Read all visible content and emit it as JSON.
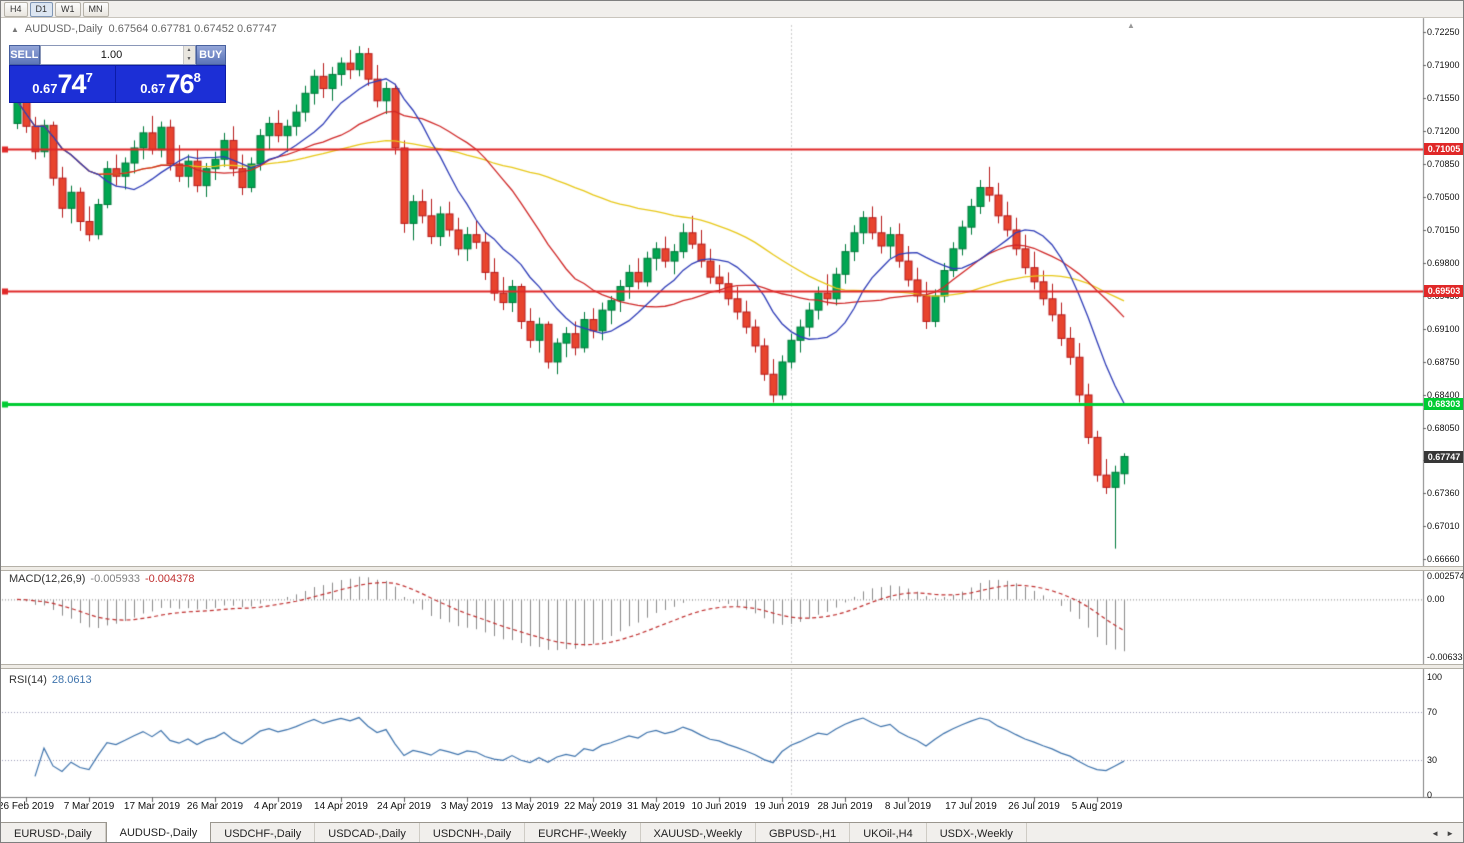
{
  "toolbar": {
    "timeframes": [
      "H4",
      "D1",
      "W1",
      "MN"
    ],
    "active": "D1"
  },
  "chart_header": {
    "symbol_label": "AUDUSD-,Daily",
    "ohlc": "0.67564 0.67781 0.67452 0.67747"
  },
  "trade_panel": {
    "sell_label": "SELL",
    "buy_label": "BUY",
    "volume": "1.00",
    "spin_up": "▲",
    "spin_down": "▼",
    "sell_price": {
      "prefix": "0.67",
      "big": "74",
      "sup": "7"
    },
    "buy_price": {
      "prefix": "0.67",
      "big": "76",
      "sup": "8"
    }
  },
  "price_axis": {
    "ticks": [
      "0.72250",
      "0.71900",
      "0.71550",
      "0.71200",
      "0.70850",
      "0.70500",
      "0.70150",
      "0.69800",
      "0.69450",
      "0.69100",
      "0.68750",
      "0.68400",
      "0.68050",
      "0.67710",
      "0.67360",
      "0.67010",
      "0.66660"
    ],
    "current_price": "0.67747",
    "current_tag_color": "#373737"
  },
  "time_axis": {
    "labels": [
      {
        "text": "26 Feb 2019",
        "i": 1
      },
      {
        "text": "7 Mar 2019",
        "i": 8
      },
      {
        "text": "17 Mar 2019",
        "i": 15
      },
      {
        "text": "26 Mar 2019",
        "i": 22
      },
      {
        "text": "4 Apr 2019",
        "i": 29
      },
      {
        "text": "14 Apr 2019",
        "i": 36
      },
      {
        "text": "24 Apr 2019",
        "i": 43
      },
      {
        "text": "3 May 2019",
        "i": 50
      },
      {
        "text": "13 May 2019",
        "i": 57
      },
      {
        "text": "22 May 2019",
        "i": 64
      },
      {
        "text": "31 May 2019",
        "i": 71
      },
      {
        "text": "10 Jun 2019",
        "i": 78
      },
      {
        "text": "19 Jun 2019",
        "i": 85
      },
      {
        "text": "28 Jun 2019",
        "i": 92
      },
      {
        "text": "8 Jul 2019",
        "i": 99
      },
      {
        "text": "17 Jul 2019",
        "i": 106
      },
      {
        "text": "26 Jul 2019",
        "i": 113
      },
      {
        "text": "5 Aug 2019",
        "i": 120
      }
    ]
  },
  "macd_panel": {
    "name": "MACD(12,26,9)",
    "main_value": "-0.005933",
    "signal_value": "-0.004378",
    "axis": [
      "0.002574",
      "0.00",
      "-0.006338"
    ],
    "histogram_color": "#8c8c8c",
    "signal_color": "#c03030"
  },
  "rsi_panel": {
    "name": "RSI(14)",
    "value": "28.0613",
    "axis": [
      "100",
      "70",
      "30",
      "0"
    ],
    "levels": [
      70,
      30
    ],
    "line_color": "#3f74ad"
  },
  "tabs": [
    {
      "label": "EURUSD-,Daily",
      "active": false
    },
    {
      "label": "AUDUSD-,Daily",
      "active": true
    },
    {
      "label": "USDCHF-,Daily",
      "active": false
    },
    {
      "label": "USDCAD-,Daily",
      "active": false
    },
    {
      "label": "USDCNH-,Daily",
      "active": false
    },
    {
      "label": "EURCHF-,Weekly",
      "active": false
    },
    {
      "label": "XAUUSD-,Weekly",
      "active": false
    },
    {
      "label": "GBPUSD-,H1",
      "active": false
    },
    {
      "label": "UKOil-,H4",
      "active": false
    },
    {
      "label": "USDX-,Weekly",
      "active": false
    }
  ],
  "tab_arrows": {
    "left": "◄",
    "right": "►"
  },
  "chart_data": {
    "type": "candlestick",
    "symbol": "AUDUSD-",
    "timeframe": "Daily",
    "current_bar": {
      "open": 0.67564,
      "high": 0.67781,
      "low": 0.67452,
      "close": 0.67747
    },
    "y_range": [
      0.6666,
      0.7225
    ],
    "up_color": "#00a651",
    "up_border": "#007a3b",
    "down_color": "#e8442e",
    "down_border": "#b71c1c",
    "moving_averages": [
      {
        "period": 50,
        "color": "#e8c818"
      },
      {
        "period": 20,
        "color": "#d02828"
      },
      {
        "period": 10,
        "color": "#2f3db8"
      }
    ],
    "hlines": [
      {
        "price": 0.71005,
        "label": "0.71005",
        "color": "#e02828",
        "width": 2
      },
      {
        "price": 0.69503,
        "label": "0.69503",
        "color": "#e02828",
        "width": 2
      },
      {
        "price": 0.68303,
        "label": "0.68303",
        "color": "#00cc33",
        "width": 3
      }
    ],
    "vline_index": 86,
    "candles": [
      [
        0.7128,
        0.716,
        0.7122,
        0.7152
      ],
      [
        0.7152,
        0.7158,
        0.7118,
        0.7125
      ],
      [
        0.7125,
        0.7135,
        0.709,
        0.7098
      ],
      [
        0.7098,
        0.7132,
        0.7092,
        0.7126
      ],
      [
        0.7126,
        0.713,
        0.7062,
        0.707
      ],
      [
        0.707,
        0.7082,
        0.7028,
        0.7038
      ],
      [
        0.7038,
        0.7062,
        0.7022,
        0.7055
      ],
      [
        0.7055,
        0.706,
        0.7014,
        0.7024
      ],
      [
        0.7024,
        0.704,
        0.7003,
        0.701
      ],
      [
        0.701,
        0.7048,
        0.7005,
        0.7042
      ],
      [
        0.7042,
        0.7088,
        0.7038,
        0.708
      ],
      [
        0.708,
        0.7095,
        0.7062,
        0.7072
      ],
      [
        0.7072,
        0.7092,
        0.7058,
        0.7086
      ],
      [
        0.7086,
        0.711,
        0.7075,
        0.7102
      ],
      [
        0.7102,
        0.7125,
        0.709,
        0.7118
      ],
      [
        0.7118,
        0.7136,
        0.7095,
        0.71
      ],
      [
        0.71,
        0.713,
        0.7092,
        0.7124
      ],
      [
        0.7124,
        0.7132,
        0.7078,
        0.7085
      ],
      [
        0.7085,
        0.7105,
        0.7066,
        0.7072
      ],
      [
        0.7072,
        0.7095,
        0.706,
        0.7088
      ],
      [
        0.7088,
        0.71,
        0.7055,
        0.7062
      ],
      [
        0.7062,
        0.7086,
        0.705,
        0.708
      ],
      [
        0.708,
        0.7098,
        0.7068,
        0.709
      ],
      [
        0.709,
        0.7118,
        0.7082,
        0.711
      ],
      [
        0.711,
        0.7125,
        0.7072,
        0.708
      ],
      [
        0.708,
        0.7095,
        0.7052,
        0.706
      ],
      [
        0.706,
        0.7092,
        0.7055,
        0.7085
      ],
      [
        0.7085,
        0.7122,
        0.7078,
        0.7115
      ],
      [
        0.7115,
        0.7135,
        0.71,
        0.7128
      ],
      [
        0.7128,
        0.7142,
        0.7108,
        0.7115
      ],
      [
        0.7115,
        0.7132,
        0.7098,
        0.7125
      ],
      [
        0.7125,
        0.7148,
        0.7115,
        0.714
      ],
      [
        0.714,
        0.7168,
        0.713,
        0.716
      ],
      [
        0.716,
        0.7185,
        0.7148,
        0.7178
      ],
      [
        0.7178,
        0.7192,
        0.7155,
        0.7165
      ],
      [
        0.7165,
        0.7188,
        0.7152,
        0.718
      ],
      [
        0.718,
        0.7198,
        0.7168,
        0.7192
      ],
      [
        0.7192,
        0.7206,
        0.7175,
        0.7185
      ],
      [
        0.7185,
        0.721,
        0.7178,
        0.7202
      ],
      [
        0.7202,
        0.7208,
        0.7168,
        0.7175
      ],
      [
        0.7175,
        0.719,
        0.7145,
        0.7152
      ],
      [
        0.7152,
        0.7172,
        0.7138,
        0.7165
      ],
      [
        0.7165,
        0.717,
        0.7095,
        0.7102
      ],
      [
        0.7102,
        0.711,
        0.7012,
        0.7022
      ],
      [
        0.7022,
        0.7052,
        0.7004,
        0.7045
      ],
      [
        0.7045,
        0.7058,
        0.7022,
        0.703
      ],
      [
        0.703,
        0.7048,
        0.7,
        0.7008
      ],
      [
        0.7008,
        0.704,
        0.6998,
        0.7032
      ],
      [
        0.7032,
        0.7045,
        0.7008,
        0.7015
      ],
      [
        0.7015,
        0.7028,
        0.6988,
        0.6995
      ],
      [
        0.6995,
        0.7018,
        0.6982,
        0.701
      ],
      [
        0.701,
        0.7025,
        0.6995,
        0.7002
      ],
      [
        0.7002,
        0.7012,
        0.6962,
        0.697
      ],
      [
        0.697,
        0.6985,
        0.694,
        0.6948
      ],
      [
        0.6948,
        0.6965,
        0.693,
        0.6938
      ],
      [
        0.6938,
        0.6962,
        0.6928,
        0.6955
      ],
      [
        0.6955,
        0.6958,
        0.691,
        0.6918
      ],
      [
        0.6918,
        0.6932,
        0.689,
        0.6898
      ],
      [
        0.6898,
        0.6922,
        0.6885,
        0.6915
      ],
      [
        0.6915,
        0.6918,
        0.6868,
        0.6875
      ],
      [
        0.6875,
        0.69,
        0.6862,
        0.6895
      ],
      [
        0.6895,
        0.6912,
        0.688,
        0.6905
      ],
      [
        0.6905,
        0.6918,
        0.6882,
        0.689
      ],
      [
        0.689,
        0.6928,
        0.6885,
        0.692
      ],
      [
        0.692,
        0.6932,
        0.69,
        0.6908
      ],
      [
        0.6908,
        0.6938,
        0.6898,
        0.693
      ],
      [
        0.693,
        0.6945,
        0.6915,
        0.694
      ],
      [
        0.694,
        0.6962,
        0.6928,
        0.6955
      ],
      [
        0.6955,
        0.6978,
        0.6942,
        0.697
      ],
      [
        0.697,
        0.6985,
        0.6952,
        0.696
      ],
      [
        0.696,
        0.6992,
        0.6955,
        0.6985
      ],
      [
        0.6985,
        0.7002,
        0.6972,
        0.6995
      ],
      [
        0.6995,
        0.7008,
        0.6975,
        0.6982
      ],
      [
        0.6982,
        0.7,
        0.6968,
        0.6992
      ],
      [
        0.6992,
        0.7022,
        0.6985,
        0.7012
      ],
      [
        0.7012,
        0.703,
        0.6995,
        0.7
      ],
      [
        0.7,
        0.7015,
        0.6975,
        0.6982
      ],
      [
        0.6982,
        0.6995,
        0.6958,
        0.6965
      ],
      [
        0.6965,
        0.6978,
        0.6948,
        0.6958
      ],
      [
        0.6958,
        0.697,
        0.6935,
        0.6942
      ],
      [
        0.6942,
        0.6955,
        0.692,
        0.6928
      ],
      [
        0.6928,
        0.694,
        0.6905,
        0.6912
      ],
      [
        0.6912,
        0.692,
        0.6885,
        0.6892
      ],
      [
        0.6892,
        0.69,
        0.6855,
        0.6862
      ],
      [
        0.6862,
        0.6878,
        0.6832,
        0.684
      ],
      [
        0.684,
        0.6882,
        0.6835,
        0.6875
      ],
      [
        0.6875,
        0.6905,
        0.6868,
        0.6898
      ],
      [
        0.6898,
        0.692,
        0.6885,
        0.6912
      ],
      [
        0.6912,
        0.6938,
        0.6902,
        0.693
      ],
      [
        0.693,
        0.6955,
        0.692,
        0.6948
      ],
      [
        0.6948,
        0.6968,
        0.6935,
        0.6942
      ],
      [
        0.6942,
        0.6975,
        0.6935,
        0.6968
      ],
      [
        0.6968,
        0.7,
        0.6958,
        0.6992
      ],
      [
        0.6992,
        0.702,
        0.6982,
        0.7012
      ],
      [
        0.7012,
        0.7035,
        0.7,
        0.7028
      ],
      [
        0.7028,
        0.704,
        0.7005,
        0.7012
      ],
      [
        0.7012,
        0.703,
        0.699,
        0.6998
      ],
      [
        0.6998,
        0.7018,
        0.6985,
        0.701
      ],
      [
        0.701,
        0.7022,
        0.6975,
        0.6982
      ],
      [
        0.6982,
        0.6998,
        0.6955,
        0.6962
      ],
      [
        0.6962,
        0.6975,
        0.6938,
        0.6945
      ],
      [
        0.6945,
        0.696,
        0.691,
        0.6918
      ],
      [
        0.6918,
        0.6952,
        0.6912,
        0.6945
      ],
      [
        0.6945,
        0.698,
        0.6938,
        0.6972
      ],
      [
        0.6972,
        0.7002,
        0.6965,
        0.6995
      ],
      [
        0.6995,
        0.7025,
        0.6988,
        0.7018
      ],
      [
        0.7018,
        0.7048,
        0.701,
        0.704
      ],
      [
        0.704,
        0.7068,
        0.7032,
        0.706
      ],
      [
        0.706,
        0.7082,
        0.7045,
        0.7052
      ],
      [
        0.7052,
        0.7065,
        0.7022,
        0.703
      ],
      [
        0.703,
        0.7045,
        0.7008,
        0.7015
      ],
      [
        0.7015,
        0.7028,
        0.6988,
        0.6995
      ],
      [
        0.6995,
        0.701,
        0.6968,
        0.6975
      ],
      [
        0.6975,
        0.6992,
        0.6952,
        0.696
      ],
      [
        0.696,
        0.6972,
        0.6935,
        0.6942
      ],
      [
        0.6942,
        0.6958,
        0.6918,
        0.6925
      ],
      [
        0.6925,
        0.6938,
        0.6892,
        0.69
      ],
      [
        0.69,
        0.6912,
        0.6872,
        0.688
      ],
      [
        0.688,
        0.6895,
        0.6832,
        0.684
      ],
      [
        0.684,
        0.6852,
        0.6788,
        0.6795
      ],
      [
        0.6795,
        0.6802,
        0.6748,
        0.6755
      ],
      [
        0.6755,
        0.6772,
        0.6735,
        0.6742
      ],
      [
        0.6742,
        0.6765,
        0.6677,
        0.6758
      ],
      [
        0.67564,
        0.67781,
        0.67452,
        0.67747
      ]
    ]
  }
}
